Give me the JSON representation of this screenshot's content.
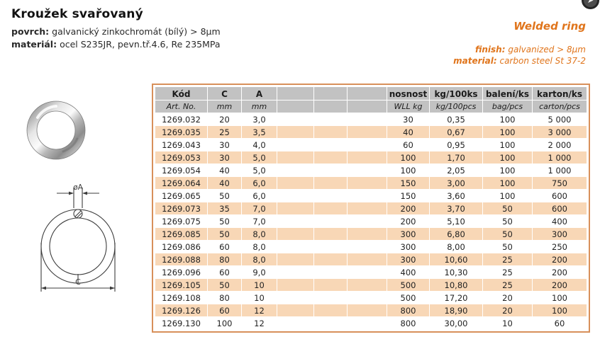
{
  "page": {
    "title": "Kroužek svařovaný",
    "povrch_label": "povrch:",
    "povrch_value": "galvanický zinkochromát (bílý) > 8µm",
    "material_label": "materiál:",
    "material_value": "ocel S235JR, pevn.tř.4.6, Re 235MPa"
  },
  "header_en": {
    "title": "Welded ring",
    "finish_label": "finish:",
    "finish_value": "galvanized > 8µm",
    "material_label": "material:",
    "material_value": "carbon steel St 37-2"
  },
  "corner_button": {
    "glyph": "➤"
  },
  "diagram": {
    "label_a": "øA",
    "label_c": "C"
  },
  "colors": {
    "accent_orange": "#e0751c",
    "table_border": "#d8905a",
    "header_gray": "#c2c2c2",
    "row_alt": "#f8d7b6",
    "text": "#222222"
  },
  "table": {
    "columns": [
      {
        "top": "Kód",
        "bottom": "Art. No."
      },
      {
        "top": "C",
        "bottom": "mm"
      },
      {
        "top": "A",
        "bottom": "mm"
      },
      {
        "top": "",
        "bottom": ""
      },
      {
        "top": "",
        "bottom": ""
      },
      {
        "top": "",
        "bottom": ""
      },
      {
        "top": "nosnost",
        "bottom": "WLL kg"
      },
      {
        "top": "kg/100ks",
        "bottom": "kg/100pcs"
      },
      {
        "top": "balení/ks",
        "bottom": "bag/pcs"
      },
      {
        "top": "karton/ks",
        "bottom": "carton/pcs"
      }
    ],
    "rows": [
      [
        "1269.032",
        "20",
        "3,0",
        "",
        "",
        "",
        "30",
        "0,35",
        "100",
        "5 000"
      ],
      [
        "1269.035",
        "25",
        "3,5",
        "",
        "",
        "",
        "40",
        "0,67",
        "100",
        "3 000"
      ],
      [
        "1269.043",
        "30",
        "4,0",
        "",
        "",
        "",
        "60",
        "0,95",
        "100",
        "2 000"
      ],
      [
        "1269.053",
        "30",
        "5,0",
        "",
        "",
        "",
        "100",
        "1,70",
        "100",
        "1 000"
      ],
      [
        "1269.054",
        "40",
        "5,0",
        "",
        "",
        "",
        "100",
        "2,05",
        "100",
        "1 000"
      ],
      [
        "1269.064",
        "40",
        "6,0",
        "",
        "",
        "",
        "150",
        "3,00",
        "100",
        "750"
      ],
      [
        "1269.065",
        "50",
        "6,0",
        "",
        "",
        "",
        "150",
        "3,60",
        "100",
        "600"
      ],
      [
        "1269.073",
        "35",
        "7,0",
        "",
        "",
        "",
        "200",
        "3,70",
        "50",
        "600"
      ],
      [
        "1269.075",
        "50",
        "7,0",
        "",
        "",
        "",
        "200",
        "5,10",
        "50",
        "400"
      ],
      [
        "1269.085",
        "50",
        "8,0",
        "",
        "",
        "",
        "300",
        "6,80",
        "50",
        "300"
      ],
      [
        "1269.086",
        "60",
        "8,0",
        "",
        "",
        "",
        "300",
        "8,00",
        "50",
        "250"
      ],
      [
        "1269.088",
        "80",
        "8,0",
        "",
        "",
        "",
        "300",
        "10,60",
        "25",
        "200"
      ],
      [
        "1269.096",
        "60",
        "9,0",
        "",
        "",
        "",
        "400",
        "10,30",
        "25",
        "200"
      ],
      [
        "1269.105",
        "50",
        "10",
        "",
        "",
        "",
        "500",
        "10,80",
        "25",
        "200"
      ],
      [
        "1269.108",
        "80",
        "10",
        "",
        "",
        "",
        "500",
        "17,20",
        "20",
        "100"
      ],
      [
        "1269.126",
        "60",
        "12",
        "",
        "",
        "",
        "800",
        "18,90",
        "20",
        "100"
      ],
      [
        "1269.130",
        "100",
        "12",
        "",
        "",
        "",
        "800",
        "30,00",
        "10",
        "60"
      ]
    ]
  }
}
